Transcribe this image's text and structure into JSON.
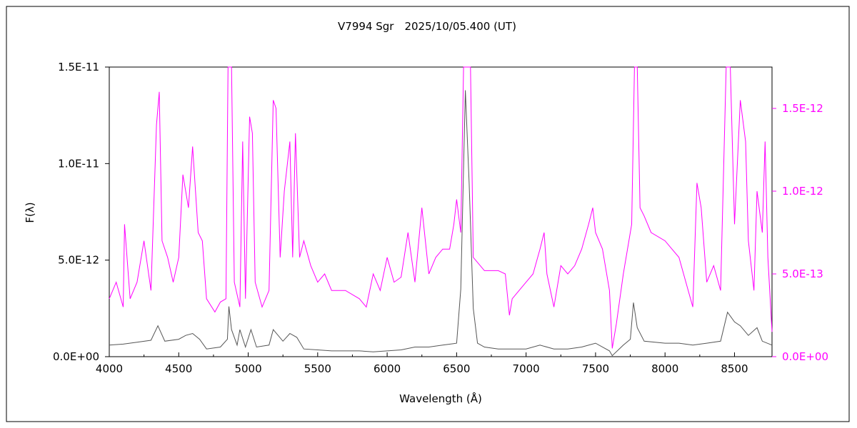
{
  "chart_data": {
    "type": "line",
    "title": "V7994 Sgr　2025/10/05.400 (UT)",
    "xlabel": "Wavelength (Å)",
    "ylabel": "F(λ)",
    "xlim": [
      4000,
      8770
    ],
    "ylim_left": [
      0,
      1.5e-11
    ],
    "ylim_right": [
      0,
      1.75e-12
    ],
    "x_ticks": [
      "4000",
      "4500",
      "5000",
      "5500",
      "6000",
      "6500",
      "7000",
      "7500",
      "8000",
      "8500"
    ],
    "y_ticks_left": [
      "0.0E+00",
      "5.0E-12",
      "1.0E-11",
      "1.5E-11"
    ],
    "y_ticks_right": [
      "0.0E+00",
      "5.0E-13",
      "1.0E-12",
      "1.5E-12"
    ],
    "grid": false,
    "series": [
      {
        "axis": "left",
        "color": "#555555",
        "points": [
          [
            4000,
            6e-13
          ],
          [
            4100,
            6.5e-13
          ],
          [
            4200,
            7.5e-13
          ],
          [
            4300,
            8.5e-13
          ],
          [
            4350,
            1.6e-12
          ],
          [
            4400,
            8e-13
          ],
          [
            4500,
            9e-13
          ],
          [
            4550,
            1.1e-12
          ],
          [
            4600,
            1.2e-12
          ],
          [
            4650,
            9e-13
          ],
          [
            4700,
            4e-13
          ],
          [
            4800,
            5e-13
          ],
          [
            4850,
            9e-13
          ],
          [
            4861,
            2.6e-12
          ],
          [
            4880,
            1.4e-12
          ],
          [
            4920,
            6e-13
          ],
          [
            4940,
            1.4e-12
          ],
          [
            4980,
            5e-13
          ],
          [
            5020,
            1.4e-12
          ],
          [
            5060,
            5e-13
          ],
          [
            5150,
            6e-13
          ],
          [
            5180,
            1.4e-12
          ],
          [
            5250,
            8e-13
          ],
          [
            5300,
            1.2e-12
          ],
          [
            5350,
            1e-12
          ],
          [
            5400,
            4e-13
          ],
          [
            5500,
            3.5e-13
          ],
          [
            5600,
            3e-13
          ],
          [
            5700,
            3e-13
          ],
          [
            5800,
            3e-13
          ],
          [
            5900,
            2.5e-13
          ],
          [
            6000,
            3e-13
          ],
          [
            6100,
            3.5e-13
          ],
          [
            6200,
            5e-13
          ],
          [
            6300,
            5e-13
          ],
          [
            6400,
            6e-13
          ],
          [
            6500,
            7e-13
          ],
          [
            6530,
            3.5e-12
          ],
          [
            6563,
            1.38e-11
          ],
          [
            6590,
            9e-12
          ],
          [
            6620,
            2.5e-12
          ],
          [
            6650,
            7e-13
          ],
          [
            6700,
            5e-13
          ],
          [
            6800,
            4e-13
          ],
          [
            6900,
            4e-13
          ],
          [
            7000,
            4e-13
          ],
          [
            7100,
            6e-13
          ],
          [
            7200,
            4e-13
          ],
          [
            7300,
            4e-13
          ],
          [
            7400,
            5e-13
          ],
          [
            7500,
            7e-13
          ],
          [
            7600,
            3e-13
          ],
          [
            7620,
            5e-14
          ],
          [
            7700,
            6e-13
          ],
          [
            7750,
            9e-13
          ],
          [
            7773,
            2.8e-12
          ],
          [
            7800,
            1.5e-12
          ],
          [
            7850,
            8e-13
          ],
          [
            8000,
            7e-13
          ],
          [
            8100,
            7e-13
          ],
          [
            8200,
            6e-13
          ],
          [
            8300,
            7e-13
          ],
          [
            8400,
            8e-13
          ],
          [
            8450,
            2.3e-12
          ],
          [
            8500,
            1.8e-12
          ],
          [
            8542,
            1.6e-12
          ],
          [
            8600,
            1.1e-12
          ],
          [
            8662,
            1.5e-12
          ],
          [
            8700,
            8e-13
          ],
          [
            8770,
            6e-13
          ]
        ]
      },
      {
        "axis": "right",
        "color": "#ff00ff",
        "points": [
          [
            4000,
            3.5e-13
          ],
          [
            4050,
            4.5e-13
          ],
          [
            4100,
            3e-13
          ],
          [
            4110,
            8e-13
          ],
          [
            4150,
            3.5e-13
          ],
          [
            4200,
            4.5e-13
          ],
          [
            4250,
            7e-13
          ],
          [
            4300,
            4e-13
          ],
          [
            4340,
            1.4e-12
          ],
          [
            4360,
            1.6e-12
          ],
          [
            4380,
            7e-13
          ],
          [
            4420,
            6e-13
          ],
          [
            4460,
            4.5e-13
          ],
          [
            4500,
            6e-13
          ],
          [
            4530,
            1.1e-12
          ],
          [
            4570,
            9e-13
          ],
          [
            4600,
            1.27e-12
          ],
          [
            4640,
            7.5e-13
          ],
          [
            4670,
            7e-13
          ],
          [
            4700,
            3.5e-13
          ],
          [
            4760,
            2.7e-13
          ],
          [
            4800,
            3.3e-13
          ],
          [
            4840,
            3.5e-13
          ],
          [
            4855,
            1.75e-12
          ],
          [
            4880,
            1.75e-12
          ],
          [
            4900,
            4.5e-13
          ],
          [
            4940,
            3e-13
          ],
          [
            4960,
            1.3e-12
          ],
          [
            4980,
            3.5e-13
          ],
          [
            5010,
            1.45e-12
          ],
          [
            5030,
            1.35e-12
          ],
          [
            5050,
            4.5e-13
          ],
          [
            5100,
            3e-13
          ],
          [
            5150,
            4e-13
          ],
          [
            5180,
            1.55e-12
          ],
          [
            5200,
            1.5e-12
          ],
          [
            5230,
            6e-13
          ],
          [
            5260,
            1e-12
          ],
          [
            5300,
            1.3e-12
          ],
          [
            5320,
            6e-13
          ],
          [
            5340,
            1.35e-12
          ],
          [
            5370,
            6e-13
          ],
          [
            5400,
            7e-13
          ],
          [
            5450,
            5.5e-13
          ],
          [
            5500,
            4.5e-13
          ],
          [
            5550,
            5e-13
          ],
          [
            5600,
            4e-13
          ],
          [
            5700,
            4e-13
          ],
          [
            5800,
            3.5e-13
          ],
          [
            5850,
            3e-13
          ],
          [
            5900,
            5e-13
          ],
          [
            5950,
            4e-13
          ],
          [
            6000,
            6e-13
          ],
          [
            6050,
            4.5e-13
          ],
          [
            6100,
            4.8e-13
          ],
          [
            6150,
            7.5e-13
          ],
          [
            6200,
            4.5e-13
          ],
          [
            6250,
            9e-13
          ],
          [
            6300,
            5e-13
          ],
          [
            6350,
            6e-13
          ],
          [
            6400,
            6.5e-13
          ],
          [
            6450,
            6.5e-13
          ],
          [
            6480,
            8e-13
          ],
          [
            6500,
            9.5e-13
          ],
          [
            6530,
            7.5e-13
          ],
          [
            6550,
            1.75e-12
          ],
          [
            6600,
            1.75e-12
          ],
          [
            6620,
            6e-13
          ],
          [
            6700,
            5.2e-13
          ],
          [
            6800,
            5.2e-13
          ],
          [
            6850,
            5e-13
          ],
          [
            6880,
            2.5e-13
          ],
          [
            6900,
            3.5e-13
          ],
          [
            6950,
            4e-13
          ],
          [
            7000,
            4.5e-13
          ],
          [
            7050,
            5e-13
          ],
          [
            7100,
            6.5e-13
          ],
          [
            7130,
            7.5e-13
          ],
          [
            7150,
            5e-13
          ],
          [
            7200,
            3e-13
          ],
          [
            7250,
            5.5e-13
          ],
          [
            7300,
            5e-13
          ],
          [
            7350,
            5.5e-13
          ],
          [
            7400,
            6.5e-13
          ],
          [
            7450,
            8e-13
          ],
          [
            7480,
            9e-13
          ],
          [
            7500,
            7.5e-13
          ],
          [
            7550,
            6.5e-13
          ],
          [
            7600,
            4e-13
          ],
          [
            7620,
            5e-14
          ],
          [
            7650,
            2e-13
          ],
          [
            7700,
            5e-13
          ],
          [
            7760,
            8e-13
          ],
          [
            7780,
            1.75e-12
          ],
          [
            7800,
            1.75e-12
          ],
          [
            7820,
            9e-13
          ],
          [
            7850,
            8.5e-13
          ],
          [
            7900,
            7.5e-13
          ],
          [
            8000,
            7e-13
          ],
          [
            8050,
            6.5e-13
          ],
          [
            8100,
            6e-13
          ],
          [
            8150,
            4.5e-13
          ],
          [
            8200,
            3e-13
          ],
          [
            8230,
            1.05e-12
          ],
          [
            8260,
            9e-13
          ],
          [
            8300,
            4.5e-13
          ],
          [
            8350,
            5.5e-13
          ],
          [
            8400,
            4e-13
          ],
          [
            8440,
            1.75e-12
          ],
          [
            8470,
            1.75e-12
          ],
          [
            8500,
            8e-13
          ],
          [
            8542,
            1.55e-12
          ],
          [
            8580,
            1.3e-12
          ],
          [
            8600,
            7e-13
          ],
          [
            8640,
            4e-13
          ],
          [
            8662,
            1e-12
          ],
          [
            8700,
            7.5e-13
          ],
          [
            8720,
            1.3e-12
          ],
          [
            8740,
            6e-13
          ],
          [
            8770,
            1.5e-13
          ]
        ]
      }
    ]
  }
}
